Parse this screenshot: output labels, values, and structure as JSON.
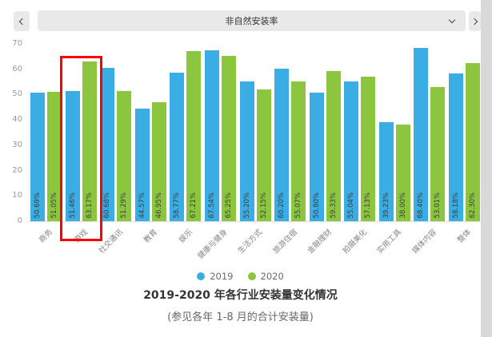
{
  "topbar": {
    "selector_label": "非自然安装率"
  },
  "chart_data": {
    "type": "bar",
    "title": "2019-2020 年各行业安装量变化情况",
    "subtitle": "(参见各年 1-8 月的合计安装量)",
    "categories": [
      "商务",
      "游戏",
      "社交通讯",
      "教育",
      "娱乐",
      "健康与健身",
      "生活方式",
      "旅游住宿",
      "金融理财",
      "拍摄美化",
      "实用工具",
      "媒体内容",
      "整体"
    ],
    "series": [
      {
        "name": "2019",
        "color": "#39ADE4",
        "values": [
          50.69,
          51.46,
          60.68,
          44.57,
          58.77,
          67.54,
          55.2,
          60.2,
          50.8,
          55.04,
          39.23,
          68.4,
          58.18
        ]
      },
      {
        "name": "2020",
        "color": "#8CC63F",
        "values": [
          51.05,
          63.17,
          51.29,
          46.95,
          67.21,
          65.25,
          52.15,
          55.07,
          59.33,
          57.13,
          38.0,
          53.01,
          62.3
        ]
      }
    ],
    "value_label_format": "percent-2dp",
    "ylim": [
      0,
      70
    ],
    "y_ticks": [
      0,
      10,
      20,
      30,
      40,
      50,
      60,
      70
    ],
    "grid": false,
    "legend_position": "bottom",
    "highlight": {
      "category": "游戏",
      "color": "#FF0000"
    }
  },
  "legend": [
    {
      "label": "2019",
      "color": "#39ADE4"
    },
    {
      "label": "2020",
      "color": "#8CC63F"
    }
  ],
  "title": "2019-2020 年各行业安装量变化情况",
  "subtitle": "(参见各年 1-8 月的合计安装量)"
}
